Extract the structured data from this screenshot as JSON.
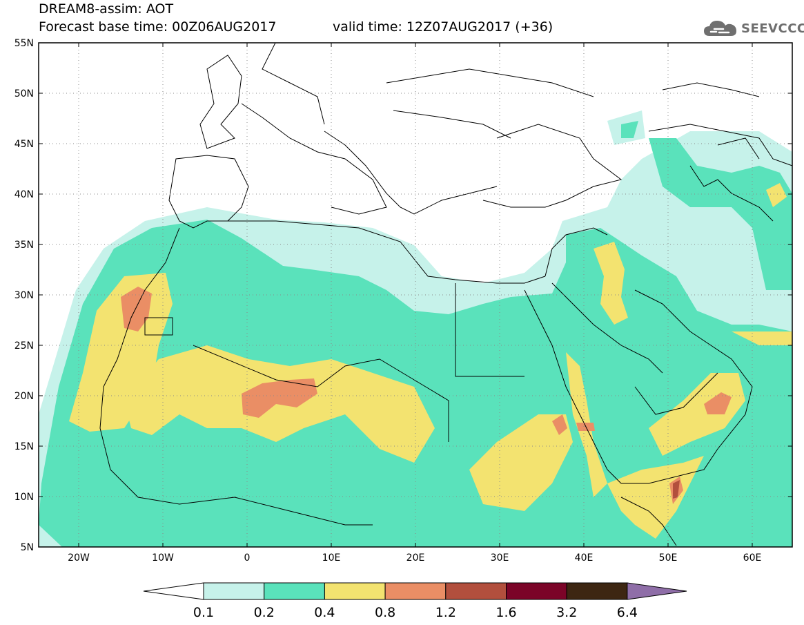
{
  "title": {
    "line1": "DREAM8-assim: AOT",
    "line2": "Forecast base time: 00Z06AUG2017",
    "valid": "valid time: 12Z07AUG2017 (+36)"
  },
  "logo": {
    "text": "SEEVCCC",
    "icon": "cloud-icon"
  },
  "axes": {
    "lat_labels": [
      "55N",
      "50N",
      "45N",
      "40N",
      "35N",
      "30N",
      "25N",
      "20N",
      "15N",
      "10N",
      "5N"
    ],
    "lon_labels": [
      "20W",
      "10W",
      "0",
      "10E",
      "20E",
      "30E",
      "40E",
      "50E",
      "60E"
    ]
  },
  "colorbar": {
    "colors": [
      "#c6f2ea",
      "#5ae2bb",
      "#f3e370",
      "#ea8e65",
      "#b24f3d",
      "#7b0428",
      "#3d2612",
      "#8f6ea8"
    ],
    "under_color": "#ffffff",
    "tick_labels": [
      "0.1",
      "0.2",
      "0.4",
      "0.8",
      "1.2",
      "1.6",
      "3.2",
      "6.4"
    ]
  }
}
